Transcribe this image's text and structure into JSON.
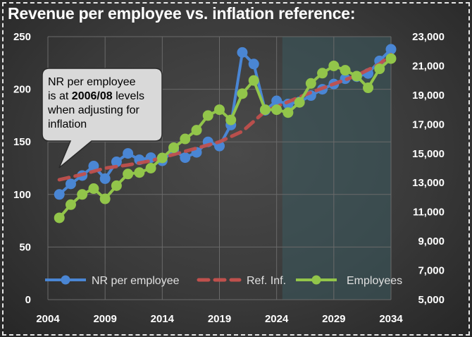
{
  "title": "Revenue per employee vs. inflation reference:",
  "callout": {
    "line1": "NR per employee",
    "line2_pre": "is at ",
    "line2_bold": "2006/08",
    "line2_post": " levels",
    "line3": "when adjusting for",
    "line4": "inflation"
  },
  "colors": {
    "nr": "#4a86d4",
    "ref": "#c0504d",
    "employees": "#92c54a",
    "forecast_shade": "#3a5a5e"
  },
  "chart_data": {
    "type": "line",
    "x_ticks": [
      "2004",
      "2009",
      "2014",
      "2019",
      "2024",
      "2029",
      "2034"
    ],
    "y_left_ticks": [
      "0",
      "50",
      "100",
      "150",
      "200",
      "250"
    ],
    "y_right_ticks": [
      "5,000",
      "7,000",
      "9,000",
      "11,000",
      "13,000",
      "15,000",
      "17,000",
      "19,000",
      "21,000",
      "23,000"
    ],
    "xlim": [
      2004,
      2034
    ],
    "ylim_left": [
      0,
      250
    ],
    "ylim_right": [
      5000,
      23000
    ],
    "forecast_start": 2025,
    "grid": true,
    "legend_placement": "bottom",
    "series": [
      {
        "name": "NR per employee",
        "axis": "left",
        "style": "line-markers",
        "x": [
          2005,
          2006,
          2007,
          2008,
          2009,
          2010,
          2011,
          2012,
          2013,
          2014,
          2015,
          2016,
          2017,
          2018,
          2019,
          2020,
          2021,
          2022,
          2023,
          2024,
          2025,
          2026,
          2027,
          2028,
          2029,
          2030,
          2031,
          2032,
          2033,
          2034
        ],
        "values": [
          100,
          110,
          118,
          127,
          115,
          131,
          139,
          133,
          135,
          132,
          142,
          135,
          140,
          150,
          146,
          166,
          235,
          224,
          180,
          189,
          186,
          188,
          194,
          200,
          205,
          210,
          212,
          215,
          227,
          238
        ]
      },
      {
        "name": "Ref. Inf.",
        "axis": "left",
        "style": "dashed",
        "x": [
          2005,
          2007,
          2009,
          2011,
          2013,
          2015,
          2017,
          2019,
          2021,
          2023,
          2025,
          2027,
          2029,
          2031,
          2033,
          2034
        ],
        "values": [
          114,
          119,
          125,
          128,
          132,
          138,
          144,
          150,
          160,
          179,
          188,
          197,
          205,
          213,
          224,
          233
        ]
      },
      {
        "name": "Employees",
        "axis": "right",
        "style": "line-markers",
        "x": [
          2005,
          2006,
          2007,
          2008,
          2009,
          2010,
          2011,
          2012,
          2013,
          2014,
          2015,
          2016,
          2017,
          2018,
          2019,
          2020,
          2021,
          2022,
          2023,
          2024,
          2025,
          2026,
          2027,
          2028,
          2029,
          2030,
          2031,
          2032,
          2033,
          2034
        ],
        "values": [
          10600,
          11500,
          12200,
          12600,
          11900,
          12800,
          13600,
          13700,
          14000,
          14700,
          15400,
          16000,
          16600,
          17600,
          18000,
          17300,
          19100,
          20000,
          18000,
          18000,
          17800,
          18500,
          19800,
          20500,
          21000,
          20700,
          20300,
          19500,
          20800,
          21500
        ]
      }
    ]
  }
}
